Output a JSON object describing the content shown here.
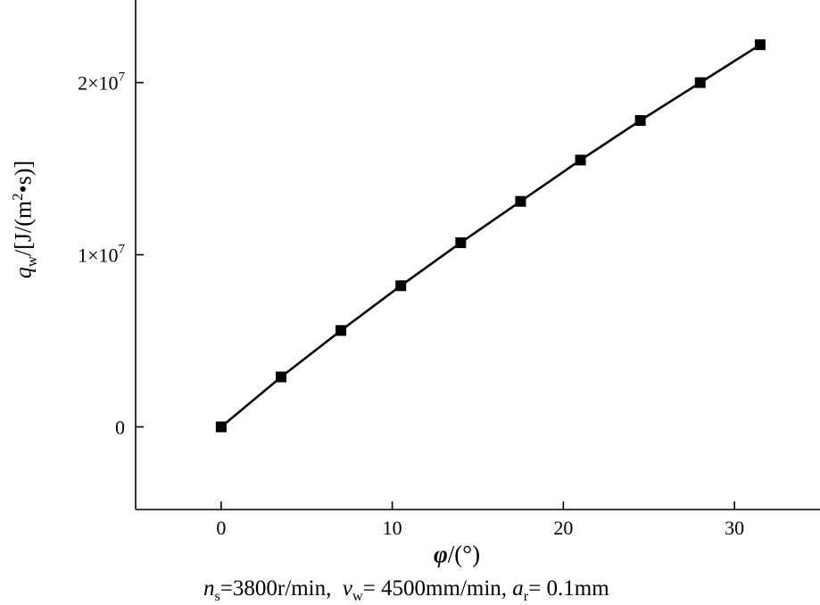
{
  "chart_data": {
    "type": "line",
    "xlim": [
      -5,
      35
    ],
    "ylim": [
      -4800000,
      24800000
    ],
    "x_ticks": [
      0,
      10,
      20,
      30
    ],
    "x_tick_labels": [
      "0",
      "10",
      "20",
      "30"
    ],
    "y_ticks": [
      0,
      10000000,
      20000000
    ],
    "y_tick_mantissa": [
      "0",
      "1",
      "2"
    ],
    "y_tick_mult": "×10",
    "y_tick_exp": "7",
    "marker": "square",
    "grid": false,
    "line_color": "#000000",
    "series": [
      {
        "x": [
          0,
          3.5,
          7,
          10.5,
          14,
          17.5,
          21,
          24.5,
          28,
          31.5
        ],
        "y": [
          0,
          2900000,
          5600000,
          8200000,
          10700000,
          13100000,
          15500000,
          17800000,
          20000000,
          22200000
        ]
      }
    ]
  },
  "labels": {
    "xlabel_symbol": "φ",
    "xlabel_unit": "/(°)",
    "ylabel_symbol": "q",
    "ylabel_sub": "w",
    "ylabel_unit": "/[J/(m",
    "ylabel_sup": "2",
    "ylabel_tail": "•s)]",
    "caption_n": "n",
    "caption_n_sub": "s",
    "caption_n_val": "=3800r/min,",
    "caption_v": "v",
    "caption_v_sub": "w",
    "caption_v_val": "= 4500mm/min,",
    "caption_a": "a",
    "caption_a_sub": "r",
    "caption_a_val": "= 0.1mm"
  }
}
